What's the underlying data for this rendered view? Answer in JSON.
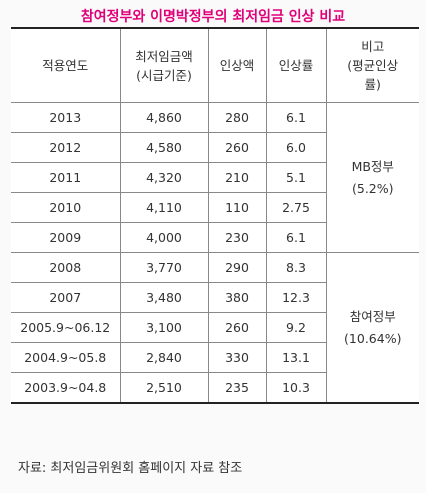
{
  "title": "참여정부와 이명박정부의 최저임금 인상 비교",
  "headers": {
    "year": "적용연도",
    "wage_line1": "최저임금액",
    "wage_line2": "(시급기준)",
    "increase_amount": "인상액",
    "increase_rate": "인상률",
    "note_line1": "비고",
    "note_line2": "(평균인상",
    "note_line3": "률)"
  },
  "rows": [
    {
      "year": "2013",
      "wage": "4,860",
      "amount": "280",
      "rate": "6.1"
    },
    {
      "year": "2012",
      "wage": "4,580",
      "amount": "260",
      "rate": "6.0"
    },
    {
      "year": "2011",
      "wage": "4,320",
      "amount": "210",
      "rate": "5.1"
    },
    {
      "year": "2010",
      "wage": "4,110",
      "amount": "110",
      "rate": "2.75"
    },
    {
      "year": "2009",
      "wage": "4,000",
      "amount": "230",
      "rate": "6.1"
    },
    {
      "year": "2008",
      "wage": "3,770",
      "amount": "290",
      "rate": "8.3"
    },
    {
      "year": "2007",
      "wage": "3,480",
      "amount": "380",
      "rate": "12.3"
    },
    {
      "year": "2005.9~06.12",
      "wage": "3,100",
      "amount": "260",
      "rate": "9.2"
    },
    {
      "year": "2004.9~05.8",
      "wage": "2,840",
      "amount": "330",
      "rate": "13.1"
    },
    {
      "year": "2003.9~04.8",
      "wage": "2,510",
      "amount": "235",
      "rate": "10.3"
    }
  ],
  "groups": {
    "mb": {
      "name": "MB정부",
      "avg": "(5.2%)"
    },
    "chamyeo": {
      "name": "참여정부",
      "avg": "(10.64%)"
    }
  },
  "footnote": "자료: 최저임금위원회 홈페이지 자료 참조",
  "colors": {
    "accent": "#e0007a",
    "text": "#333333",
    "border": "#888888"
  }
}
